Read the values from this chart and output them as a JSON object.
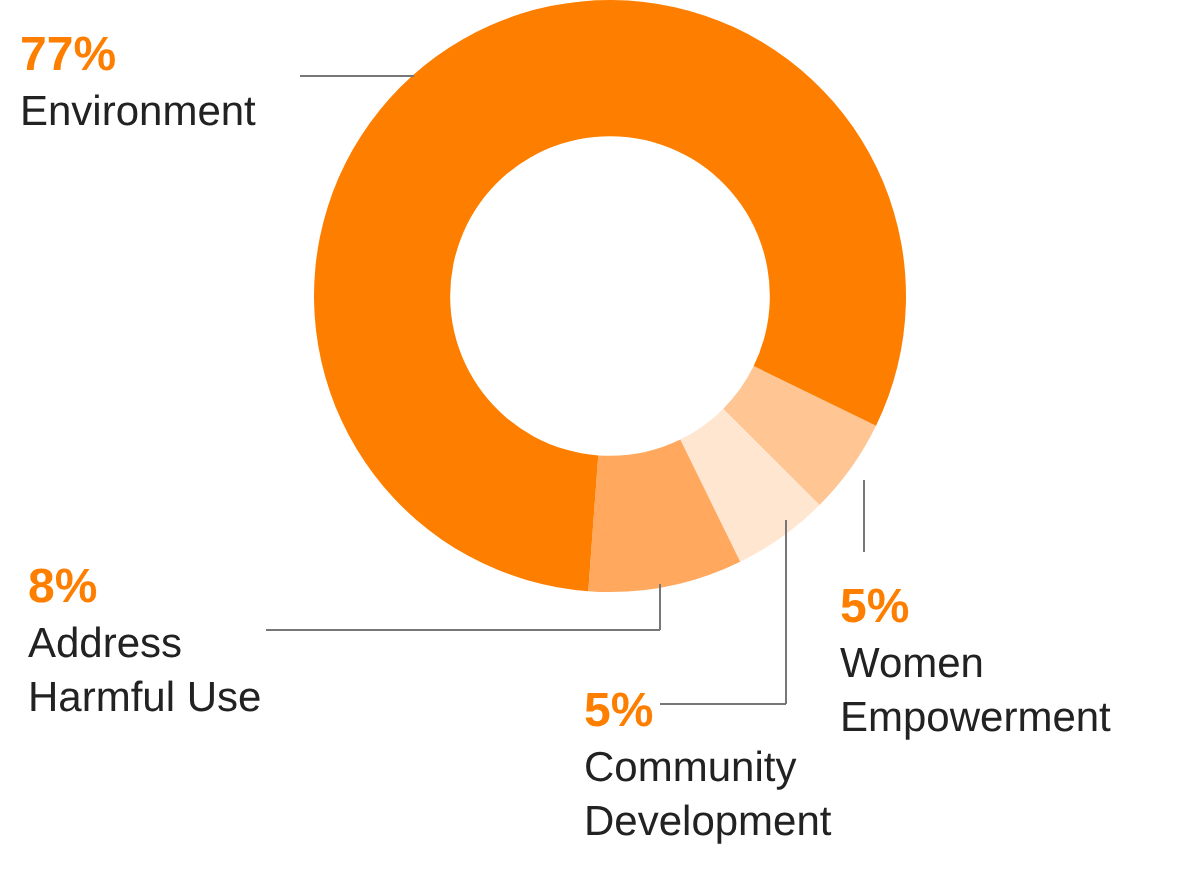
{
  "chart_data": {
    "type": "donut",
    "categories": [
      "Women Empowerment",
      "Community Development",
      "Address Harmful Use",
      "Environment"
    ],
    "values": [
      5,
      5,
      8,
      77
    ],
    "value_labels": [
      "5%",
      "5%",
      "8%",
      "77%"
    ],
    "colors": [
      "#ffc593",
      "#ffe6d1",
      "#ffa85e",
      "#fe7f00"
    ],
    "legend": false
  }
}
